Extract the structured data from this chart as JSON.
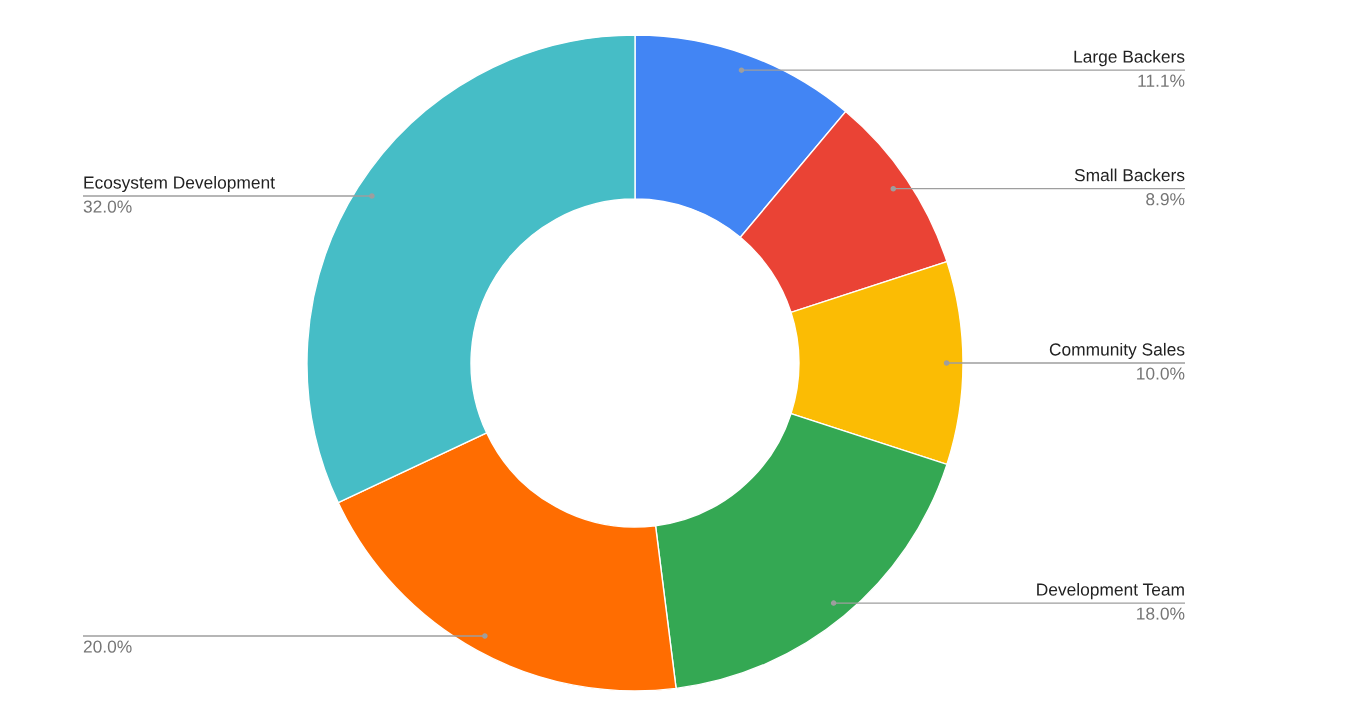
{
  "chart_data": {
    "type": "donut",
    "categories": [
      "Large Backers",
      "Small Backers",
      "Community Sales",
      "Development Team",
      null,
      "Ecosystem Development"
    ],
    "values": [
      11.1,
      8.9,
      10.0,
      18.0,
      20.0,
      32.0
    ],
    "value_labels": [
      "11.1%",
      "8.9%",
      "10.0%",
      "18.0%",
      "20.0%",
      "32.0%"
    ],
    "colors": [
      "#4285f4",
      "#ea4335",
      "#fbbc04",
      "#34a853",
      "#ff6d01",
      "#46bdc6"
    ]
  }
}
